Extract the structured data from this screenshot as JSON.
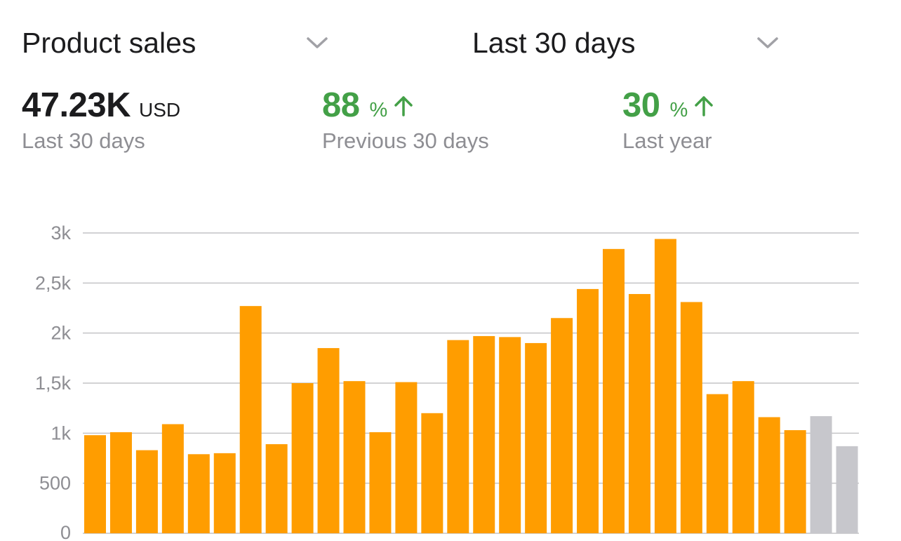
{
  "header": {
    "metric_selector": {
      "label": "Product sales",
      "icon": "chevron-down-icon"
    },
    "range_selector": {
      "label": "Last 30 days",
      "icon": "chevron-down-icon"
    }
  },
  "stats": {
    "total": {
      "value": "47.23K",
      "unit": "USD",
      "caption": "Last 30 days"
    },
    "vs_previous": {
      "value": "88",
      "unit": "%",
      "caption": "Previous 30 days",
      "icon": "arrow-up-icon"
    },
    "vs_last_year": {
      "value": "30",
      "unit": "%",
      "caption": "Last year",
      "icon": "arrow-up-icon"
    }
  },
  "colors": {
    "bar": "#ff9d00",
    "bar_projected": "#c7c7cc",
    "positive": "#43a047",
    "grid": "#c4c4c6",
    "axis_text": "#8e8e93"
  },
  "chart_data": {
    "type": "bar",
    "values": [
      980,
      1010,
      830,
      1090,
      790,
      800,
      2270,
      890,
      1500,
      1850,
      1520,
      1010,
      1510,
      1200,
      1930,
      1970,
      1960,
      1900,
      2150,
      2440,
      2840,
      2390,
      2940,
      2310,
      1390,
      1520,
      1160,
      1030,
      1170,
      870
    ],
    "highlighted_last": 2,
    "ylim": [
      0,
      3000
    ],
    "yticks": [
      0,
      500,
      1000,
      1500,
      2000,
      2500,
      3000
    ],
    "ytick_labels": [
      "0",
      "500",
      "1k",
      "1,5k",
      "2k",
      "2,5k",
      "3k"
    ],
    "grid": true,
    "title": "",
    "xlabel": "",
    "ylabel": ""
  }
}
